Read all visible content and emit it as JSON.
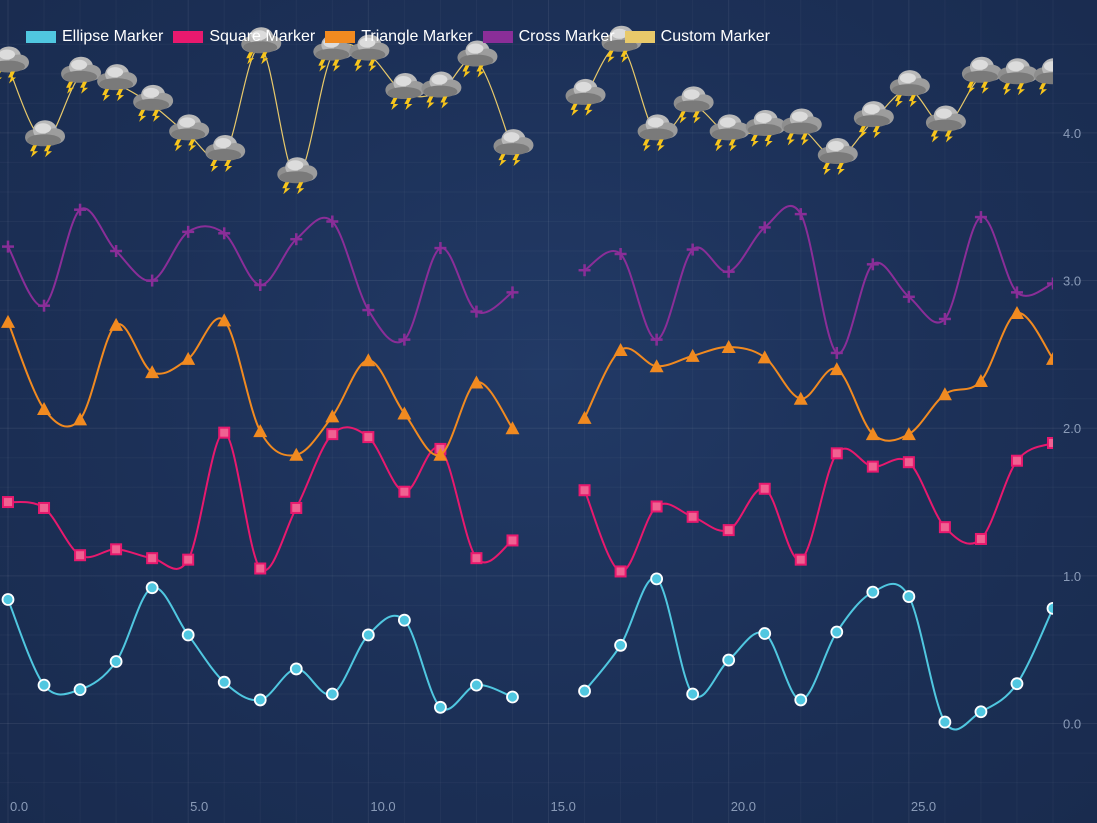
{
  "chart_data": {
    "type": "line",
    "x": [
      0,
      1,
      2,
      3,
      4,
      5,
      6,
      7,
      8,
      9,
      10,
      11,
      12,
      13,
      14,
      15,
      16,
      17,
      18,
      19,
      20,
      21,
      22,
      23,
      24,
      25,
      26,
      27,
      28,
      29
    ],
    "xlim": [
      0,
      29
    ],
    "ylim": [
      -0.45,
      4.9
    ],
    "x_ticks": [
      "0.0",
      "5.0",
      "10.0",
      "15.0",
      "20.0",
      "25.0"
    ],
    "x_tick_values": [
      0,
      5,
      10,
      15,
      20,
      25
    ],
    "y_ticks": [
      "0.0",
      "1.0",
      "2.0",
      "3.0",
      "4.0"
    ],
    "y_tick_values": [
      0,
      1,
      2,
      3,
      4
    ],
    "grid": true,
    "legend_position": "top-left",
    "series": [
      {
        "name": "Ellipse Marker",
        "marker": "ellipse",
        "color": "#50c7e0",
        "values": [
          0.84,
          0.26,
          0.23,
          0.42,
          0.92,
          0.6,
          0.28,
          0.16,
          0.37,
          0.2,
          0.6,
          0.7,
          0.11,
          0.26,
          0.18,
          null,
          0.22,
          0.53,
          0.98,
          0.2,
          0.43,
          0.61,
          0.16,
          0.62,
          0.89,
          0.86,
          0.01,
          0.08,
          0.27,
          0.78
        ]
      },
      {
        "name": "Square Marker",
        "marker": "square",
        "color": "#e8196e",
        "values": [
          1.5,
          1.46,
          1.14,
          1.18,
          1.12,
          1.11,
          1.97,
          1.05,
          1.46,
          1.96,
          1.94,
          1.57,
          1.86,
          1.12,
          1.24,
          null,
          1.58,
          1.03,
          1.47,
          1.4,
          1.31,
          1.59,
          1.11,
          1.83,
          1.74,
          1.77,
          1.33,
          1.25,
          1.78,
          1.9
        ]
      },
      {
        "name": "Triangle Marker",
        "marker": "triangle",
        "color": "#f18a20",
        "values": [
          2.72,
          2.13,
          2.06,
          2.7,
          2.38,
          2.47,
          2.73,
          1.98,
          1.82,
          2.08,
          2.46,
          2.1,
          1.82,
          2.31,
          2.0,
          null,
          2.07,
          2.53,
          2.42,
          2.49,
          2.55,
          2.48,
          2.2,
          2.4,
          1.96,
          1.96,
          2.23,
          2.32,
          2.78,
          2.47
        ]
      },
      {
        "name": "Cross Marker",
        "marker": "cross",
        "color": "#8a2e98",
        "values": [
          3.23,
          2.83,
          3.48,
          3.2,
          3.0,
          3.33,
          3.32,
          2.97,
          3.28,
          3.4,
          2.8,
          2.6,
          3.22,
          2.79,
          2.92,
          null,
          3.07,
          3.18,
          2.6,
          3.21,
          3.06,
          3.36,
          3.45,
          2.51,
          3.11,
          2.89,
          2.74,
          3.43,
          2.92,
          2.98
        ]
      },
      {
        "name": "Custom Marker",
        "marker": "custom",
        "color": "#e8c96a",
        "values": [
          4.45,
          3.95,
          4.38,
          4.33,
          4.19,
          3.99,
          3.85,
          4.58,
          3.7,
          4.53,
          4.53,
          4.27,
          4.28,
          4.49,
          3.89,
          null,
          4.23,
          4.59,
          3.99,
          4.18,
          3.99,
          4.02,
          4.03,
          3.83,
          4.08,
          4.29,
          4.05,
          4.38,
          4.37,
          4.37
        ]
      }
    ]
  }
}
